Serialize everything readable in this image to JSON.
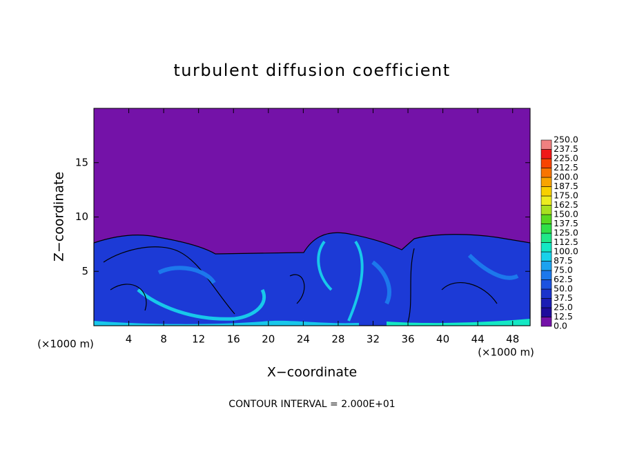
{
  "chart_data": {
    "type": "contour",
    "title": "turbulent diffusion coefficient",
    "xlabel": "X−coordinate",
    "ylabel": "Z−coordinate",
    "x_unit": "(×1000 m)",
    "footnote": "CONTOUR INTERVAL = 2.000E+01",
    "xlim": [
      0,
      50
    ],
    "ylim": [
      0,
      20
    ],
    "xticks": [
      4,
      8,
      12,
      16,
      20,
      24,
      28,
      32,
      36,
      40,
      44,
      48
    ],
    "yticks": [
      5,
      10,
      15
    ],
    "colorbar": {
      "levels": [
        {
          "value": 0,
          "label": "0.0"
        },
        {
          "value": 12.5,
          "label": "12.5"
        },
        {
          "value": 25,
          "label": "25.0"
        },
        {
          "value": 37.5,
          "label": "37.5"
        },
        {
          "value": 50,
          "label": "50.0"
        },
        {
          "value": 62.5,
          "label": "62.5"
        },
        {
          "value": 75,
          "label": "75.0"
        },
        {
          "value": 87.5,
          "label": "87.5"
        },
        {
          "value": 100,
          "label": "100.0"
        },
        {
          "value": 112.5,
          "label": "112.5"
        },
        {
          "value": 125,
          "label": "125.0"
        },
        {
          "value": 137.5,
          "label": "137.5"
        },
        {
          "value": 150,
          "label": "150.0"
        },
        {
          "value": 162.5,
          "label": "162.5"
        },
        {
          "value": 175,
          "label": "175.0"
        },
        {
          "value": 187.5,
          "label": "187.5"
        },
        {
          "value": 200,
          "label": "200.0"
        },
        {
          "value": 212.5,
          "label": "212.5"
        },
        {
          "value": 225,
          "label": "225.0"
        },
        {
          "value": 237.5,
          "label": "237.5"
        },
        {
          "value": 250,
          "label": "250.0"
        }
      ],
      "colors": [
        "#7412a8",
        "#1e0c9c",
        "#1b1db4",
        "#1b34cc",
        "#1c52e0",
        "#1c78ec",
        "#1ca2f0",
        "#18d2ea",
        "#14e8c4",
        "#20e888",
        "#30e048",
        "#58d820",
        "#a8e020",
        "#ecec20",
        "#f8d000",
        "#f8a400",
        "#f87400",
        "#f84400",
        "#f01818",
        "#f08080"
      ]
    }
  }
}
